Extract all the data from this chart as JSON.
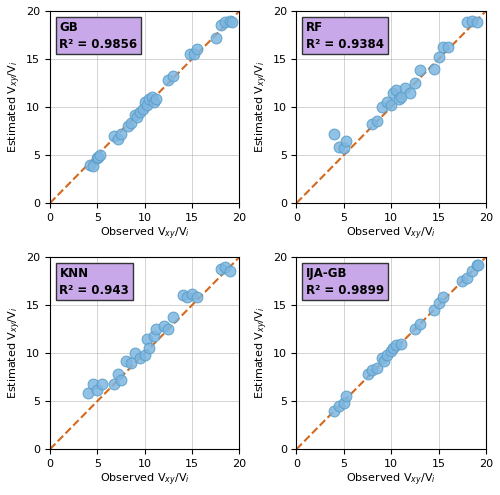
{
  "subplots": [
    {
      "label": "GB",
      "r2": "R² = 0.9856",
      "observed": [
        4.2,
        4.5,
        5.0,
        5.1,
        5.3,
        6.8,
        7.2,
        7.5,
        8.2,
        8.5,
        9.0,
        9.2,
        9.5,
        9.8,
        10.0,
        10.2,
        10.5,
        10.8,
        11.0,
        11.2,
        12.5,
        13.0,
        14.8,
        15.2,
        15.5,
        17.5,
        18.0,
        18.5,
        19.0,
        19.2
      ],
      "estimated": [
        4.0,
        3.9,
        4.7,
        4.8,
        5.0,
        7.0,
        6.7,
        7.2,
        8.0,
        8.3,
        9.2,
        9.0,
        9.5,
        9.8,
        10.5,
        10.2,
        10.8,
        11.0,
        10.5,
        10.8,
        12.8,
        13.2,
        15.5,
        15.5,
        16.0,
        17.2,
        18.5,
        18.8,
        19.0,
        18.8
      ]
    },
    {
      "label": "RF",
      "r2": "R² = 0.9384",
      "observed": [
        4.0,
        4.5,
        5.0,
        5.2,
        8.0,
        8.5,
        9.0,
        9.5,
        10.0,
        10.2,
        10.5,
        10.8,
        11.0,
        11.5,
        12.0,
        12.5,
        13.0,
        14.5,
        15.0,
        15.5,
        16.0,
        18.0,
        18.5,
        19.0
      ],
      "estimated": [
        7.2,
        5.8,
        5.7,
        6.5,
        8.2,
        8.5,
        10.0,
        10.5,
        10.2,
        11.5,
        11.8,
        10.8,
        11.0,
        12.0,
        11.5,
        12.5,
        13.8,
        14.0,
        15.2,
        16.2,
        16.2,
        18.8,
        19.0,
        18.8
      ]
    },
    {
      "label": "KNN",
      "r2": "R² = 0.943",
      "observed": [
        4.0,
        4.5,
        5.0,
        5.5,
        6.8,
        7.2,
        7.5,
        8.0,
        8.5,
        9.0,
        9.5,
        10.0,
        10.2,
        10.5,
        11.0,
        11.2,
        12.0,
        12.5,
        13.0,
        14.0,
        14.5,
        15.0,
        15.5,
        18.0,
        18.5,
        19.0
      ],
      "estimated": [
        5.8,
        6.8,
        6.2,
        6.8,
        6.8,
        7.8,
        7.2,
        9.2,
        9.0,
        10.0,
        9.5,
        9.8,
        11.5,
        10.5,
        11.8,
        12.5,
        12.8,
        12.5,
        13.8,
        16.0,
        15.8,
        16.2,
        15.8,
        18.8,
        19.0,
        18.5
      ]
    },
    {
      "label": "IJA-GB",
      "r2": "R² = 0.9899",
      "observed": [
        4.0,
        4.5,
        5.0,
        5.2,
        7.5,
        8.0,
        8.5,
        9.0,
        9.2,
        9.5,
        10.0,
        10.2,
        10.5,
        11.0,
        12.5,
        13.0,
        14.5,
        15.0,
        15.5,
        17.5,
        18.0,
        18.5,
        19.0,
        19.2
      ],
      "estimated": [
        4.0,
        4.5,
        4.8,
        5.5,
        7.8,
        8.2,
        8.5,
        9.5,
        9.2,
        9.8,
        10.2,
        10.5,
        10.8,
        11.0,
        12.5,
        13.0,
        14.5,
        15.2,
        15.8,
        17.5,
        17.8,
        18.5,
        19.2,
        19.2
      ]
    }
  ],
  "xlim": [
    0,
    20
  ],
  "ylim": [
    0,
    20
  ],
  "xticks": [
    0,
    5,
    10,
    15,
    20
  ],
  "yticks": [
    0,
    5,
    10,
    15,
    20
  ],
  "scatter_color": "#7EB6E0",
  "scatter_edgecolor": "#5A9EC9",
  "dashed_line_color": "#D2691E",
  "box_facecolor": "#C8A8E8",
  "box_edgecolor": "#333333",
  "grid_color": "#AAAAAA",
  "xlabel": "Observed V$_{xy}$/V$_i$",
  "ylabel": "Estimated V$_{xy}$/V$_i$",
  "scatter_size": 60,
  "scatter_alpha": 0.85,
  "figsize": [
    5.0,
    4.95
  ],
  "dpi": 100
}
